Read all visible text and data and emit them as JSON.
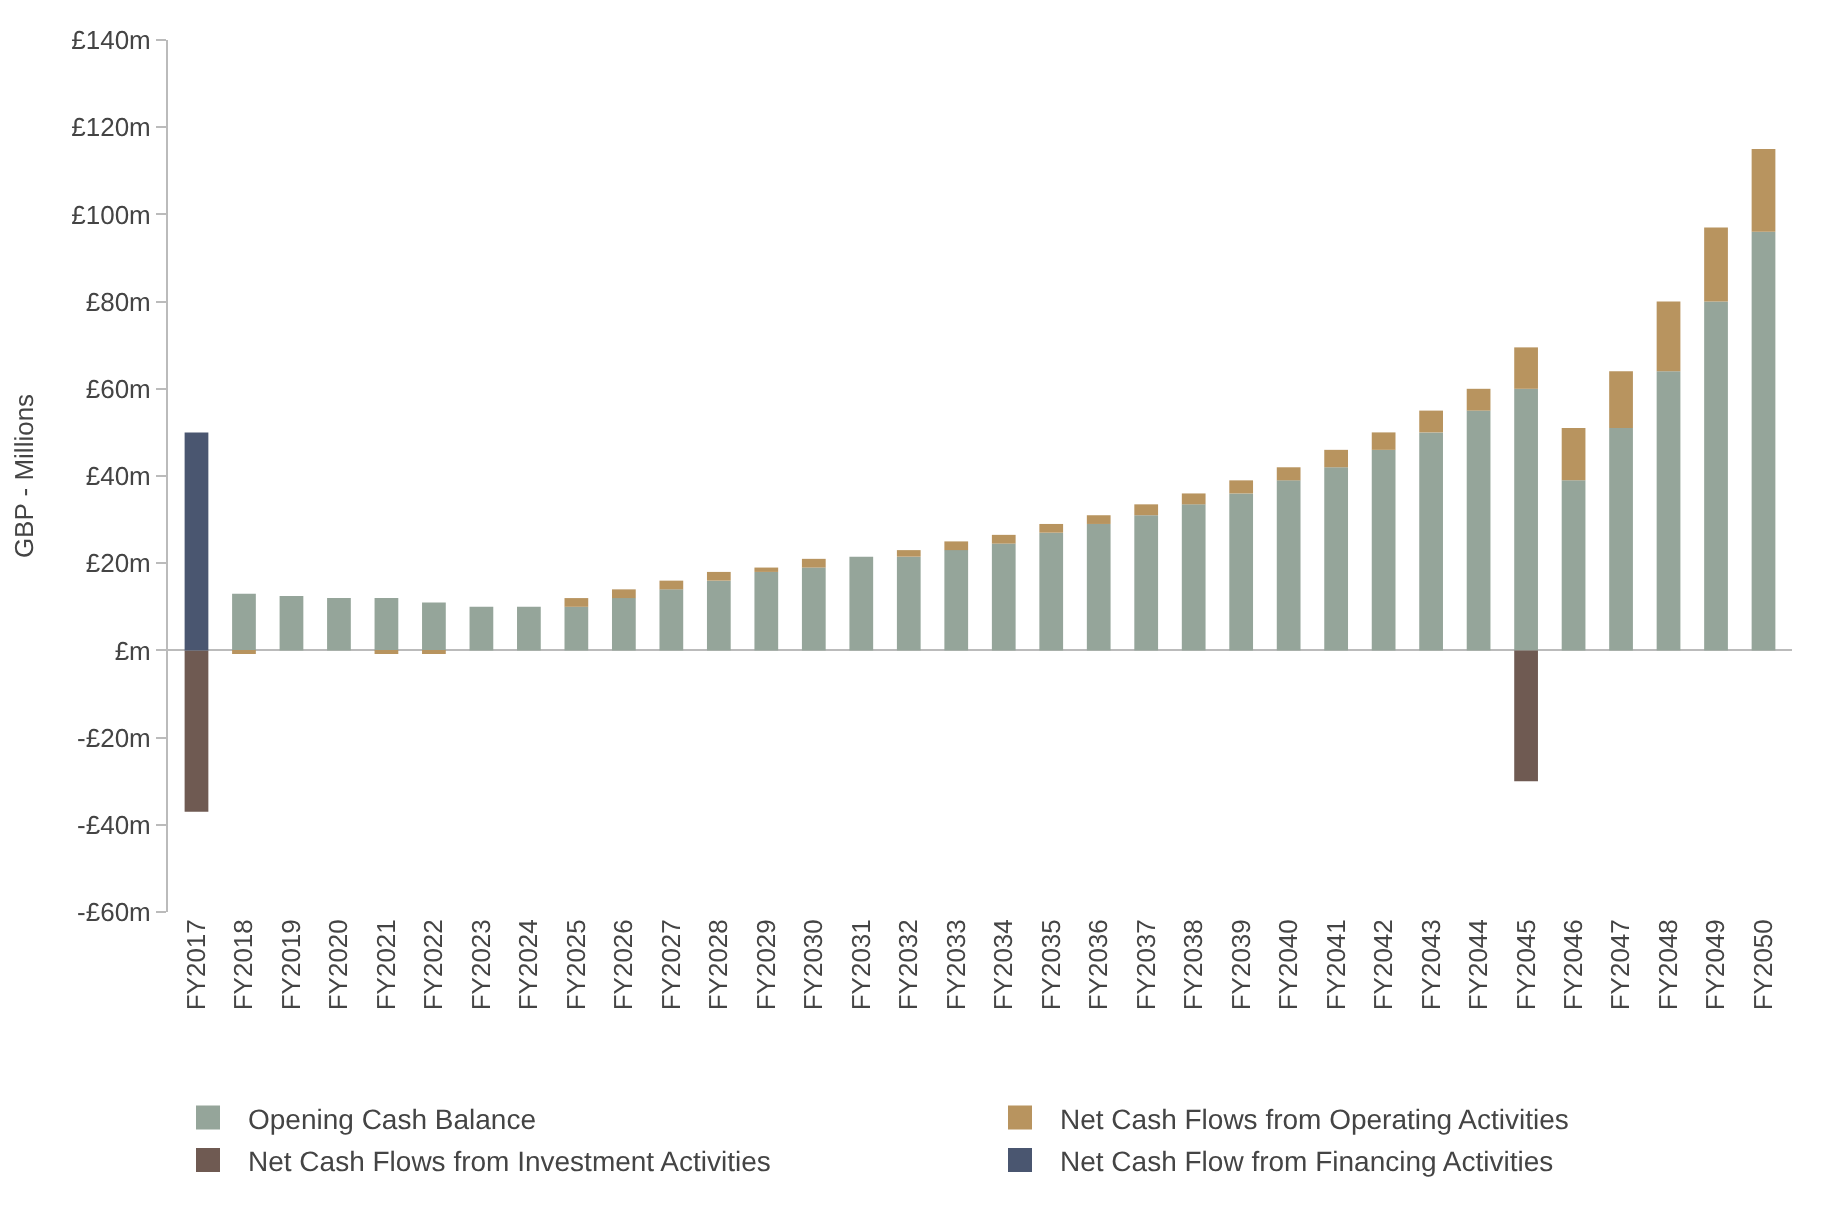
{
  "chart_data": {
    "type": "bar",
    "stacked": true,
    "ylabel": "GBP - Millions",
    "categories": [
      "FY2017",
      "FY2018",
      "FY2019",
      "FY2020",
      "FY2021",
      "FY2022",
      "FY2023",
      "FY2024",
      "FY2025",
      "FY2026",
      "FY2027",
      "FY2028",
      "FY2029",
      "FY2030",
      "FY2031",
      "FY2032",
      "FY2033",
      "FY2034",
      "FY2035",
      "FY2036",
      "FY2037",
      "FY2038",
      "FY2039",
      "FY2040",
      "FY2041",
      "FY2042",
      "FY2043",
      "FY2044",
      "FY2045",
      "FY2046",
      "FY2047",
      "FY2048",
      "FY2049",
      "FY2050"
    ],
    "series": [
      {
        "name": "Opening Cash Balance",
        "color": "#95a59a",
        "values": [
          0,
          13,
          12.5,
          12,
          12,
          11,
          10,
          10,
          10,
          12,
          14,
          16,
          18,
          19,
          21.5,
          21.5,
          23,
          24.5,
          27,
          29,
          31,
          33.5,
          36,
          39,
          42,
          46,
          50,
          55,
          60,
          39,
          51,
          64,
          80,
          96
        ]
      },
      {
        "name": "Net Cash Flows from Operating Activities",
        "color": "#b8945f",
        "values": [
          0,
          -0.5,
          0,
          0,
          -0.5,
          -0.5,
          0,
          0,
          2,
          2,
          2,
          2,
          1,
          2,
          0,
          1.5,
          2,
          2,
          2,
          2,
          2.5,
          2.5,
          3,
          3,
          4,
          4,
          5,
          5,
          9.5,
          12,
          13,
          16,
          17,
          19
        ]
      },
      {
        "name": "Net Cash Flows from Investment Activities",
        "color": "#6f5a52",
        "values": [
          -37,
          0,
          0,
          0,
          0,
          0,
          0,
          0,
          0,
          0,
          0,
          0,
          0,
          0,
          0,
          0,
          0,
          0,
          0,
          0,
          0,
          0,
          0,
          0,
          0,
          0,
          0,
          0,
          -30,
          0,
          0,
          0,
          0,
          0
        ]
      },
      {
        "name": "Net Cash Flow from Financing Activities",
        "color": "#4a5670",
        "values": [
          50,
          0,
          0,
          0,
          0,
          0,
          0,
          0,
          0,
          0,
          0,
          0,
          0,
          0,
          0,
          0,
          0,
          0,
          0,
          0,
          0,
          0,
          0,
          0,
          0,
          0,
          0,
          0,
          0,
          0,
          0,
          0,
          0,
          0
        ]
      }
    ],
    "ylim": [
      -60,
      140
    ],
    "yticks": [
      {
        "value": -60,
        "label": "-£60m"
      },
      {
        "value": -40,
        "label": "-£40m"
      },
      {
        "value": -20,
        "label": "-£20m"
      },
      {
        "value": 0,
        "label": "£m"
      },
      {
        "value": 20,
        "label": "£20m"
      },
      {
        "value": 40,
        "label": "£40m"
      },
      {
        "value": 60,
        "label": "£60m"
      },
      {
        "value": 80,
        "label": "£80m"
      },
      {
        "value": 100,
        "label": "£100m"
      },
      {
        "value": 120,
        "label": "£120m"
      },
      {
        "value": 140,
        "label": "£140m"
      }
    ],
    "legend": "bottom"
  }
}
